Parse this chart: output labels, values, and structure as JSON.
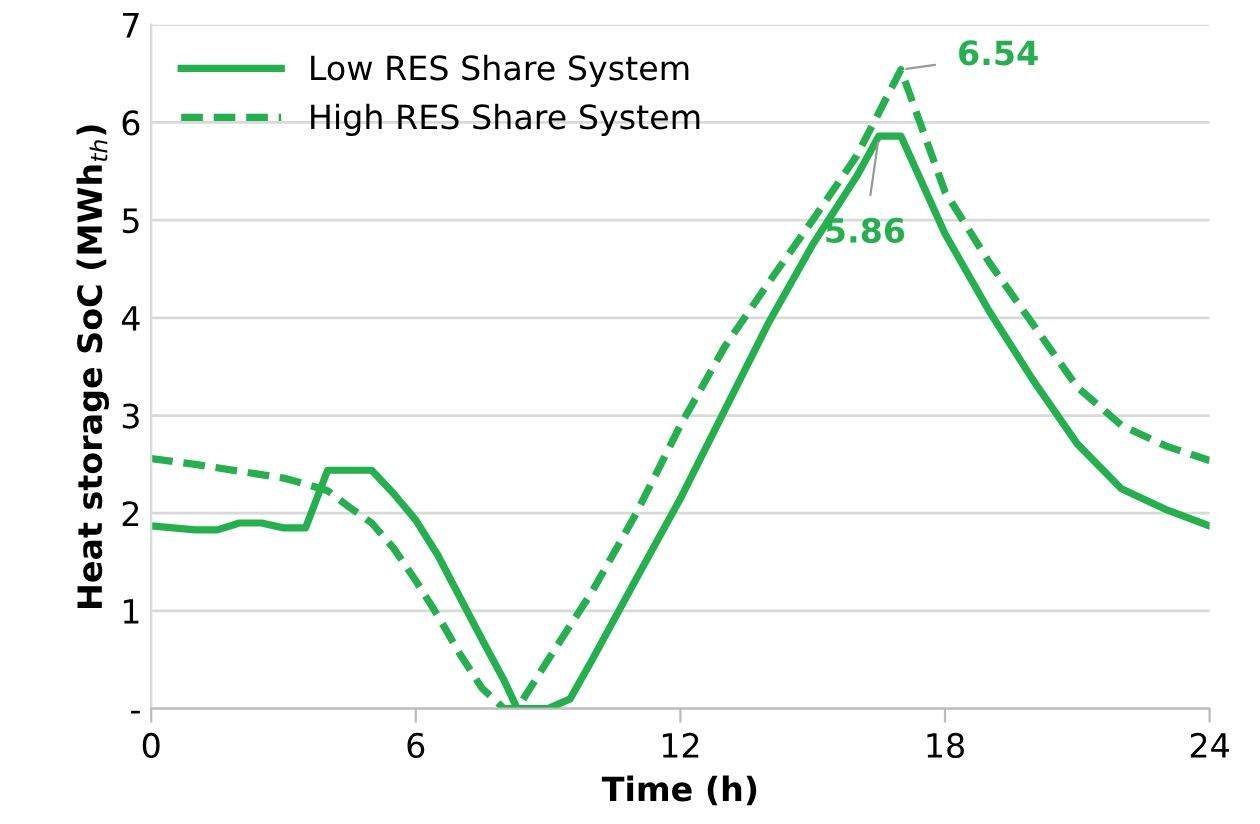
{
  "chart_data": {
    "type": "line",
    "xlabel": "Time (h)",
    "ylabel": "Heat storage SoC (MWh$_{th}$)",
    "xlim": [
      0,
      24
    ],
    "xticks": [
      0,
      6,
      12,
      18,
      24
    ],
    "ylim": [
      0,
      7
    ],
    "yticks": [
      {
        "value": 0,
        "label": "-"
      },
      1,
      2,
      3,
      4,
      5,
      6,
      7
    ],
    "grid": "y",
    "legend": "top left",
    "marker": "none",
    "series": [
      {
        "name": "Low RES Share System",
        "color": "#22b14c",
        "line_style": "solid",
        "x": [
          0,
          1,
          1.5,
          2,
          2.5,
          3,
          3.5,
          4,
          5,
          5.5,
          6,
          6.5,
          7,
          7.5,
          8,
          8.3,
          9,
          9.5,
          10,
          11,
          12,
          13,
          14,
          15,
          16,
          16.5,
          17,
          18,
          19,
          20,
          21,
          22,
          23,
          24
        ],
        "values": [
          1.87,
          1.83,
          1.83,
          1.9,
          1.9,
          1.85,
          1.85,
          2.44,
          2.44,
          2.2,
          1.93,
          1.57,
          1.14,
          0.71,
          0.29,
          0,
          0,
          0.1,
          0.5,
          1.33,
          2.15,
          3.05,
          3.95,
          4.75,
          5.45,
          5.86,
          5.86,
          4.86,
          4.07,
          3.36,
          2.71,
          2.25,
          2.04,
          1.87
        ]
      },
      {
        "name": "High RES Share System",
        "color": "#22b14c",
        "line_style": "dashed",
        "x": [
          0,
          1,
          2,
          3,
          3.5,
          4,
          4.5,
          5,
          5.5,
          6,
          6.5,
          7,
          7.5,
          8,
          8.3,
          9,
          10,
          11,
          12,
          13,
          14,
          15,
          16,
          17,
          18,
          19,
          20,
          21,
          22,
          23,
          24
        ],
        "values": [
          2.56,
          2.5,
          2.43,
          2.36,
          2.3,
          2.23,
          2.06,
          1.9,
          1.64,
          1.31,
          0.95,
          0.56,
          0.21,
          0,
          0,
          0.5,
          1.2,
          2.0,
          2.9,
          3.7,
          4.36,
          5.0,
          5.66,
          6.54,
          5.29,
          4.57,
          3.93,
          3.29,
          2.9,
          2.69,
          2.54
        ]
      }
    ],
    "annotations": [
      {
        "text": "6.54",
        "x": 17,
        "y": 6.54
      },
      {
        "text": "5.86",
        "x": 16.5,
        "y": 5.86
      }
    ]
  }
}
